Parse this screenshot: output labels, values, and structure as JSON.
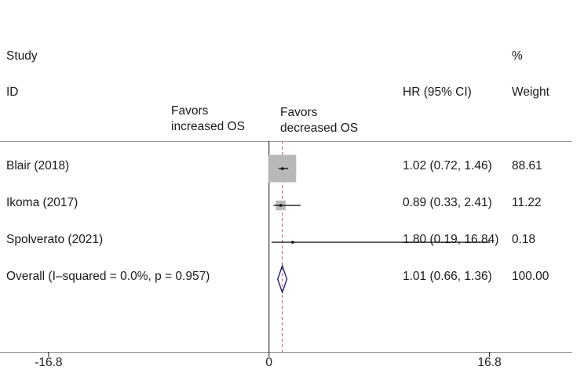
{
  "chart_data": {
    "type": "forest",
    "header": {
      "study_line1": "Study",
      "study_line2": "ID",
      "effect_label": "HR (95% CI)",
      "weight_line1": "%",
      "weight_line2": "Weight"
    },
    "favor_left": [
      "Favors",
      "increased OS"
    ],
    "favor_right": [
      "Favors",
      "decreased OS"
    ],
    "xlim": [
      -20.5,
      24.0
    ],
    "ticks": [
      {
        "value": -16.8,
        "label": "-16.8"
      },
      {
        "value": 0,
        "label": "0"
      },
      {
        "value": 16.8,
        "label": "16.8"
      }
    ],
    "null_line": 0,
    "overall_line": 1.01,
    "studies": [
      {
        "label": "Blair  (2018)",
        "hr": 1.02,
        "lo": 0.72,
        "hi": 1.46,
        "ci_text": "1.02 (0.72, 1.46)",
        "weight": 88.61,
        "weight_text": "88.61"
      },
      {
        "label": "Ikoma  (2017)",
        "hr": 0.89,
        "lo": 0.33,
        "hi": 2.41,
        "ci_text": "0.89 (0.33, 2.41)",
        "weight": 11.22,
        "weight_text": "11.22"
      },
      {
        "label": "Spolverato (2021)",
        "hr": 1.8,
        "lo": 0.19,
        "hi": 16.84,
        "ci_text": "1.80 (0.19, 16.84)",
        "weight": 0.18,
        "weight_text": "0.18"
      }
    ],
    "overall": {
      "label": "Overall  (I–squared = 0.0%, p = 0.957)",
      "hr": 1.01,
      "lo": 0.66,
      "hi": 1.36,
      "ci_text": "1.01 (0.66, 1.36)",
      "weight_text": "100.00"
    },
    "colors": {
      "box": "#b8b8b8",
      "diamond": "#1f1f7a",
      "overall_line": "#c0506a",
      "axis": "#1a1a1a"
    }
  }
}
